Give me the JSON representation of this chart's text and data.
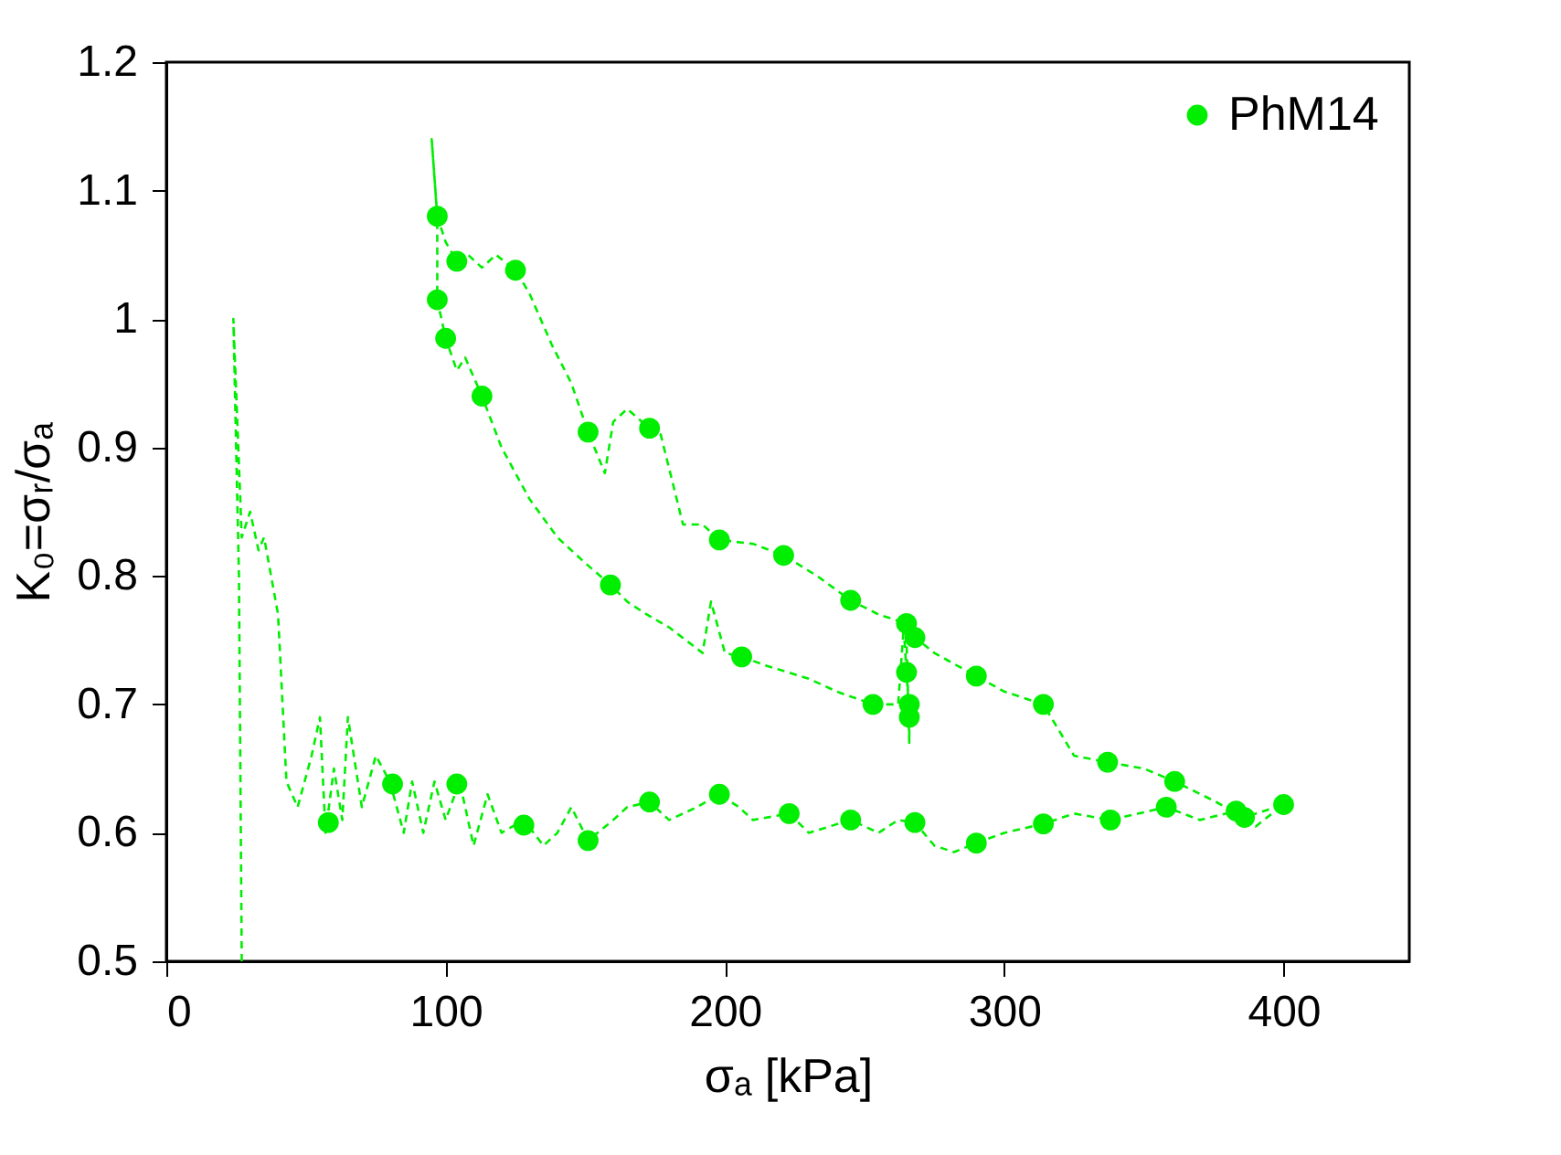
{
  "chart_data": {
    "type": "line",
    "xlabel": "σₐ [kPa]",
    "ylabel": "K₀=σᵣ/σₐ",
    "xlim": [
      0,
      445
    ],
    "xticks": [
      0,
      100,
      200,
      300,
      400
    ],
    "ylim": [
      0.5,
      1.2
    ],
    "yticks": [
      0.5,
      0.6,
      0.7,
      0.8,
      0.9,
      1,
      1.1,
      1.2
    ],
    "grid": false,
    "legend": "top right",
    "series": [
      {
        "color": "#00ee00",
        "line_style": "dashed",
        "marker": "none",
        "x": [
          27,
          26,
          24,
          27,
          30,
          33,
          35,
          40,
          43,
          47,
          52,
          55,
          57,
          60,
          63,
          65,
          70,
          75,
          80,
          85,
          88,
          92,
          96,
          100,
          105,
          110,
          115,
          120,
          128,
          135,
          140,
          145,
          151,
          160,
          165,
          173,
          180,
          190,
          198,
          205,
          210,
          223,
          230,
          245,
          255,
          262,
          268,
          275,
          282,
          290,
          300,
          314,
          325,
          338,
          348,
          358,
          370,
          383,
          390,
          400,
          386,
          375,
          361,
          350,
          337,
          325,
          314,
          300,
          290,
          275,
          268,
          265,
          255,
          245,
          233,
          221,
          210,
          198,
          192,
          185,
          177,
          173,
          165,
          160,
          157,
          151,
          145,
          138,
          130,
          125,
          118,
          113,
          108,
          104,
          100,
          97,
          95,
          97,
          97,
          100,
          104,
          107,
          113,
          120,
          130,
          140,
          150,
          159,
          165,
          172,
          180,
          192,
          195,
          200,
          206,
          215,
          230,
          240,
          253,
          262,
          264,
          265,
          266,
          266,
          265
        ],
        "values": [
          0.5,
          0.8,
          1.0,
          0.83,
          0.85,
          0.82,
          0.83,
          0.77,
          0.64,
          0.62,
          0.66,
          0.69,
          0.6,
          0.65,
          0.61,
          0.69,
          0.62,
          0.66,
          0.64,
          0.6,
          0.64,
          0.6,
          0.64,
          0.61,
          0.64,
          0.59,
          0.63,
          0.6,
          0.61,
          0.59,
          0.6,
          0.62,
          0.594,
          0.61,
          0.62,
          0.624,
          0.61,
          0.62,
          0.63,
          0.62,
          0.61,
          0.615,
          0.6,
          0.61,
          0.6,
          0.61,
          0.608,
          0.59,
          0.585,
          0.592,
          0.6,
          0.607,
          0.615,
          0.61,
          0.615,
          0.62,
          0.61,
          0.617,
          0.605,
          0.622,
          0.612,
          0.625,
          0.64,
          0.65,
          0.655,
          0.66,
          0.7,
          0.71,
          0.722,
          0.74,
          0.752,
          0.763,
          0.77,
          0.781,
          0.8,
          0.816,
          0.825,
          0.828,
          0.84,
          0.84,
          0.91,
          0.915,
          0.93,
          0.92,
          0.88,
          0.912,
          0.95,
          0.98,
          1.02,
          1.038,
          1.05,
          1.04,
          1.05,
          1.045,
          1.06,
          1.08,
          1.14,
          1.08,
          1.015,
          0.985,
          0.96,
          0.97,
          0.94,
          0.9,
          0.86,
          0.83,
          0.81,
          0.793,
          0.78,
          0.77,
          0.76,
          0.74,
          0.78,
          0.74,
          0.737,
          0.73,
          0.72,
          0.71,
          0.7,
          0.7,
          0.76,
          0.725,
          0.69,
          0.67,
          0.75
        ]
      },
      {
        "type": "scatter",
        "name": "PhM14",
        "color": "#00ee00",
        "marker": "circle",
        "x": [
          97,
          97,
          100,
          104,
          113,
          125,
          151,
          173,
          159,
          198,
          221,
          245,
          206,
          253,
          265,
          268,
          265,
          266,
          266,
          290,
          314,
          337,
          361,
          383,
          386,
          400,
          358,
          338,
          314,
          290,
          268,
          245,
          223,
          198,
          173,
          151,
          128,
          104,
          81,
          58
        ],
        "values": [
          1.08,
          1.015,
          0.985,
          1.045,
          0.94,
          1.038,
          0.912,
          0.915,
          0.793,
          0.828,
          0.816,
          0.781,
          0.737,
          0.7,
          0.763,
          0.752,
          0.725,
          0.69,
          0.7,
          0.722,
          0.7,
          0.655,
          0.64,
          0.617,
          0.612,
          0.622,
          0.62,
          0.61,
          0.607,
          0.592,
          0.608,
          0.61,
          0.615,
          0.63,
          0.624,
          0.594,
          0.606,
          0.638,
          0.638,
          0.608
        ]
      }
    ]
  }
}
